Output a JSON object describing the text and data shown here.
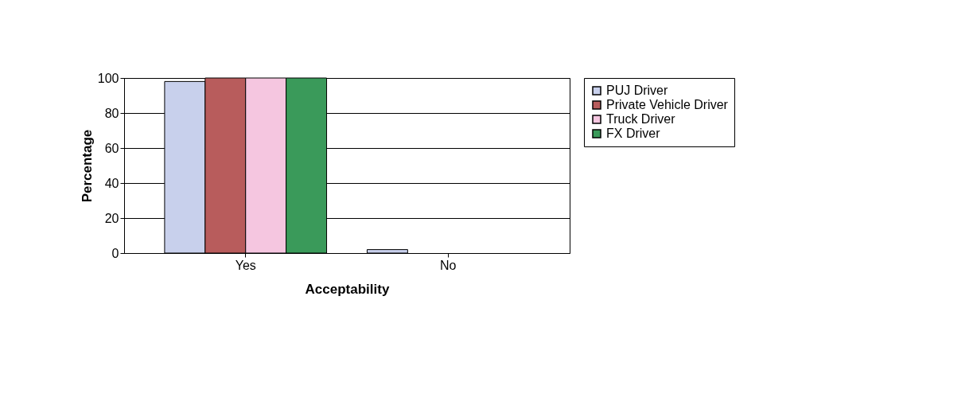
{
  "chart_data": {
    "type": "bar",
    "xlabel": "Acceptability",
    "ylabel": "Percentage",
    "categories": [
      "Yes",
      "No"
    ],
    "series": [
      {
        "name": "PUJ Driver",
        "color": "#c8d0ec",
        "values": [
          98,
          2
        ]
      },
      {
        "name": "Private Vehicle Driver",
        "color": "#b85c5c",
        "values": [
          100,
          0
        ]
      },
      {
        "name": "Truck Driver",
        "color": "#f5c6e0",
        "values": [
          100,
          0
        ]
      },
      {
        "name": "FX Driver",
        "color": "#3a9a5a",
        "values": [
          100,
          0
        ]
      }
    ],
    "ylim": [
      0,
      100
    ],
    "yticks": [
      0,
      20,
      40,
      60,
      80,
      100
    ],
    "grid": "y",
    "legend": "right"
  }
}
